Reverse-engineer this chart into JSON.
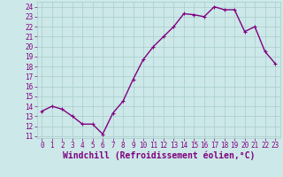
{
  "x": [
    0,
    1,
    2,
    3,
    4,
    5,
    6,
    7,
    8,
    9,
    10,
    11,
    12,
    13,
    14,
    15,
    16,
    17,
    18,
    19,
    20,
    21,
    22,
    23
  ],
  "y": [
    13.5,
    14.0,
    13.7,
    13.0,
    12.2,
    12.2,
    11.2,
    13.3,
    14.5,
    16.7,
    18.7,
    20.0,
    21.0,
    22.0,
    23.3,
    23.2,
    23.0,
    24.0,
    23.7,
    23.7,
    21.5,
    22.0,
    19.5,
    18.3
  ],
  "line_color": "#800080",
  "marker": "+",
  "bg_color": "#cce8e8",
  "grid_color": "#aacccc",
  "xlabel": "Windchill (Refroidissement éolien,°C)",
  "ylim": [
    10.8,
    24.5
  ],
  "xlim": [
    -0.5,
    23.5
  ],
  "yticks": [
    11,
    12,
    13,
    14,
    15,
    16,
    17,
    18,
    19,
    20,
    21,
    22,
    23,
    24
  ],
  "xticks": [
    0,
    1,
    2,
    3,
    4,
    5,
    6,
    7,
    8,
    9,
    10,
    11,
    12,
    13,
    14,
    15,
    16,
    17,
    18,
    19,
    20,
    21,
    22,
    23
  ],
  "tick_color": "#800080",
  "axis_label_color": "#800080",
  "font_size_xlabel": 7.0,
  "font_size_ticks": 5.5,
  "line_width": 1.0,
  "marker_size": 3.5
}
